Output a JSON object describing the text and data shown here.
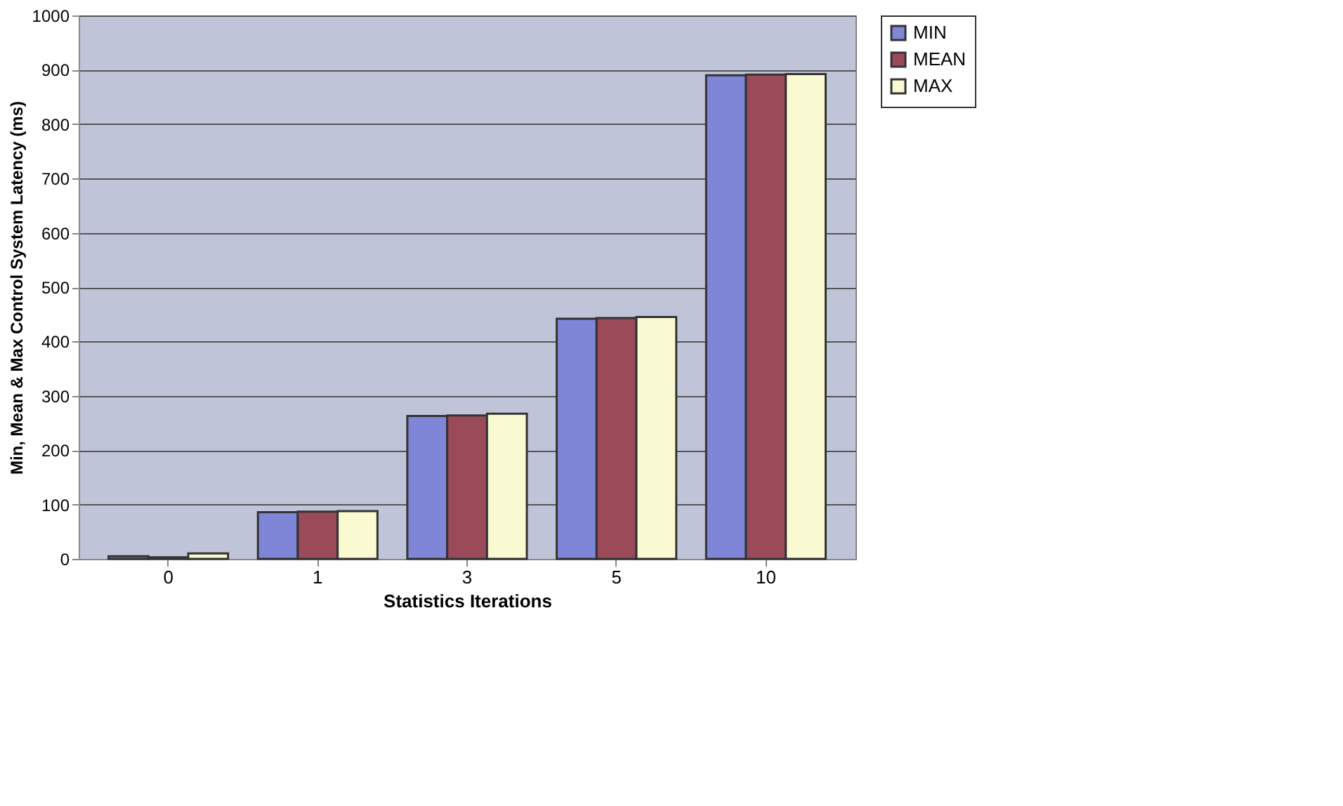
{
  "chart_data": {
    "type": "bar",
    "xlabel": "Statistics Iterations",
    "ylabel": "Min, Mean & Max Control System Latency (ms)",
    "categories": [
      "0",
      "1",
      "3",
      "5",
      "10"
    ],
    "series": [
      {
        "name": "MIN",
        "color": "#7f86d8",
        "values": [
          5,
          86,
          263,
          442,
          890
        ]
      },
      {
        "name": "MEAN",
        "color": "#9b4a5a",
        "values": [
          3,
          87,
          264,
          443,
          891
        ]
      },
      {
        "name": "MAX",
        "color": "#fafad2",
        "values": [
          10,
          88,
          267,
          445,
          892
        ]
      }
    ],
    "ylim": [
      0,
      1000
    ],
    "yticks": [
      0,
      100,
      200,
      300,
      400,
      500,
      600,
      700,
      800,
      900,
      1000
    ],
    "grid": "y",
    "legend": "right"
  }
}
